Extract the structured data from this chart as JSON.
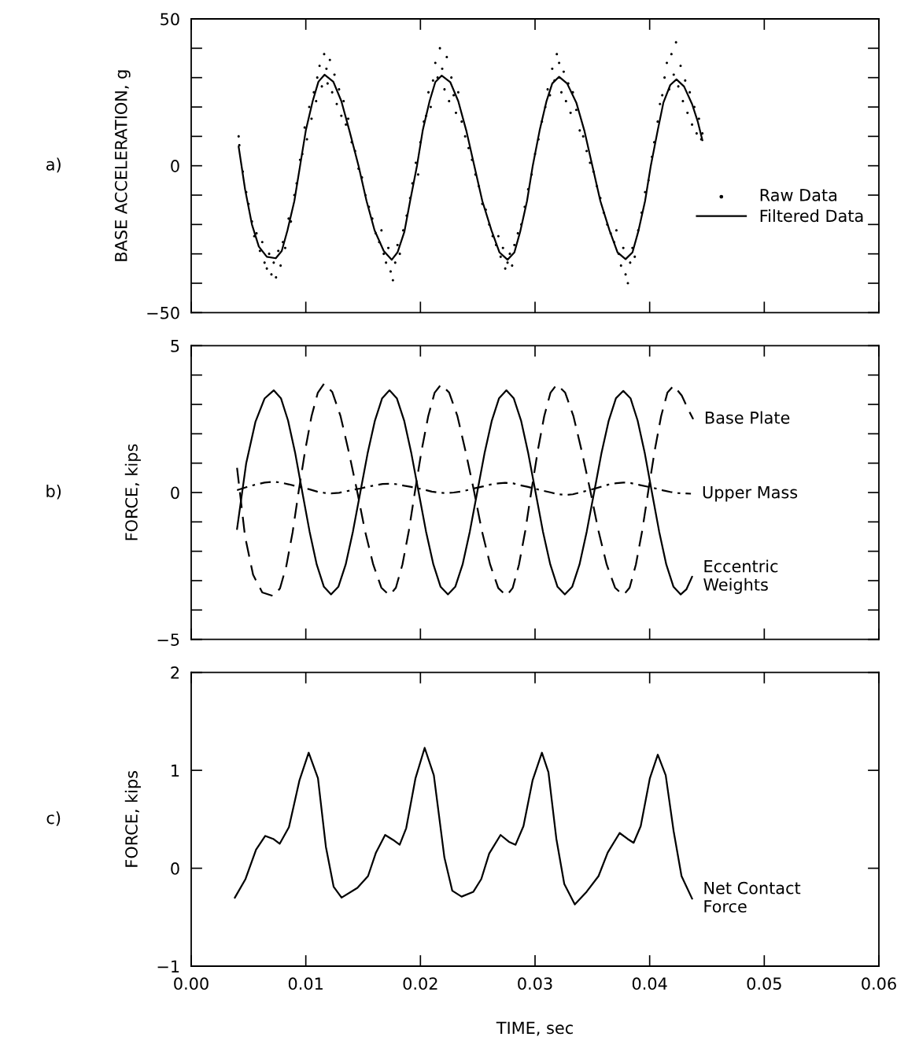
{
  "chart_data": [
    {
      "type": "line",
      "ylabel": "BASE ACCELERATION, g",
      "annotations": [
        "a)"
      ],
      "xlim": [
        0,
        0.06
      ],
      "ylim": [
        -50,
        50
      ],
      "tick_labels": "y",
      "legend": "right",
      "xticks": [
        {
          "value": 0,
          "label": null
        },
        {
          "value": 0.01,
          "label": null
        },
        {
          "value": 0.02,
          "label": null
        },
        {
          "value": 0.03,
          "label": null
        },
        {
          "value": 0.04,
          "label": null
        },
        {
          "value": 0.05,
          "label": null
        },
        {
          "value": 0.06,
          "label": null
        }
      ],
      "yticks": [
        -50,
        {
          "value": -40,
          "label": null
        },
        {
          "value": -30,
          "label": null
        },
        {
          "value": -20,
          "label": null
        },
        {
          "value": -10,
          "label": null
        },
        0,
        {
          "value": 10,
          "label": null
        },
        {
          "value": 20,
          "label": null
        },
        {
          "value": 30,
          "label": null
        },
        {
          "value": 40,
          "label": null
        },
        50
      ],
      "series": [
        {
          "name": "Raw Data",
          "type": "scatter",
          "marker": "circle",
          "color": "#000000",
          "x": [
            0.00414,
            0.0042,
            0.0045,
            0.0048,
            0.005,
            0.0053,
            0.0055,
            0.0057,
            0.006,
            0.0062,
            0.0064,
            0.0066,
            0.0068,
            0.007,
            0.0072,
            0.0074,
            0.0076,
            0.0078,
            0.008,
            0.0082,
            0.0085,
            0.0087,
            0.009,
            0.0092,
            0.0095,
            0.0097,
            0.0099,
            0.0101,
            0.0103,
            0.0105,
            0.0107,
            0.0109,
            0.011,
            0.0112,
            0.0114,
            0.0116,
            0.0118,
            0.0119,
            0.0121,
            0.0123,
            0.0125,
            0.0127,
            0.0129,
            0.0131,
            0.0133,
            0.0135,
            0.0137,
            0.014,
            0.0143,
            0.0146,
            0.0149,
            0.0152,
            0.0155,
            0.0158,
            0.0161,
            0.0164,
            0.0166,
            0.0168,
            0.017,
            0.0172,
            0.0174,
            0.0176,
            0.0178,
            0.018,
            0.0182,
            0.0185,
            0.0188,
            0.0191,
            0.0193,
            0.0196,
            0.0198,
            0.02,
            0.0203,
            0.0205,
            0.0207,
            0.0209,
            0.0211,
            0.0213,
            0.0215,
            0.0217,
            0.0219,
            0.0221,
            0.0223,
            0.0225,
            0.0227,
            0.0229,
            0.0231,
            0.0233,
            0.0236,
            0.0239,
            0.0242,
            0.0245,
            0.0248,
            0.0251,
            0.0254,
            0.0257,
            0.026,
            0.0263,
            0.0266,
            0.0268,
            0.027,
            0.0272,
            0.0274,
            0.0276,
            0.0278,
            0.028,
            0.0282,
            0.0285,
            0.0288,
            0.0291,
            0.0294,
            0.0297,
            0.03,
            0.0303,
            0.0306,
            0.0309,
            0.0311,
            0.0313,
            0.0315,
            0.0317,
            0.0319,
            0.0321,
            0.0323,
            0.0325,
            0.0327,
            0.0329,
            0.0331,
            0.0333,
            0.0336,
            0.0339,
            0.0342,
            0.0345,
            0.0348,
            0.0351,
            0.0354,
            0.0357,
            0.036,
            0.0363,
            0.0366,
            0.0369,
            0.0371,
            0.0373,
            0.0375,
            0.0377,
            0.0379,
            0.0381,
            0.0383,
            0.0385,
            0.0387,
            0.039,
            0.0393,
            0.0396,
            0.0399,
            0.0402,
            0.0404,
            0.0407,
            0.0409,
            0.0411,
            0.0413,
            0.0415,
            0.0417,
            0.0419,
            0.0421,
            0.0423,
            0.0425,
            0.0427,
            0.0429,
            0.0431,
            0.0433,
            0.0435,
            0.0437,
            0.0439,
            0.0441,
            0.0443,
            0.0445,
            0.0446
          ],
          "values": [
            10,
            7,
            -2,
            -9,
            -13,
            -19,
            -24,
            -23,
            -29,
            -26,
            -33,
            -35,
            -30,
            -37,
            -33,
            -38,
            -29,
            -34,
            -26,
            -28,
            -18,
            -19,
            -10,
            -6,
            2,
            4,
            13,
            9,
            20,
            16,
            25,
            22,
            30,
            34,
            27,
            38,
            33,
            28,
            36,
            25,
            31,
            21,
            26,
            17,
            22,
            14,
            16,
            8,
            5,
            -1,
            -4,
            -10,
            -14,
            -18,
            -23,
            -26,
            -22,
            -30,
            -33,
            -28,
            -36,
            -39,
            -33,
            -27,
            -30,
            -22,
            -17,
            -11,
            -6,
            1,
            -3,
            8,
            15,
            17,
            25,
            20,
            29,
            35,
            30,
            40,
            33,
            26,
            37,
            22,
            30,
            24,
            18,
            25,
            15,
            10,
            6,
            2,
            -3,
            -7,
            -13,
            -15,
            -20,
            -24,
            -27,
            -24,
            -31,
            -28,
            -35,
            -33,
            -30,
            -34,
            -27,
            -23,
            -20,
            -14,
            -8,
            -3,
            4,
            9,
            15,
            20,
            26,
            24,
            33,
            29,
            38,
            35,
            25,
            32,
            22,
            28,
            18,
            25,
            19,
            12,
            10,
            5,
            1,
            -2,
            -7,
            -11,
            -16,
            -20,
            -23,
            -26,
            -22,
            -30,
            -34,
            -28,
            -37,
            -40,
            -33,
            -28,
            -31,
            -22,
            -16,
            -9,
            -5,
            3,
            8,
            15,
            21,
            24,
            30,
            35,
            26,
            38,
            31,
            42,
            27,
            34,
            22,
            29,
            18,
            25,
            14,
            20,
            11,
            16,
            9,
            11
          ]
        },
        {
          "name": "Filtered Data",
          "type": "line",
          "marker": "none",
          "line_style": "solid",
          "color": "#000000",
          "x": [
            0.00414,
            0.0047,
            0.0053,
            0.0059,
            0.0066,
            0.00738,
            0.0079,
            0.0084,
            0.009,
            0.0095,
            0.01,
            0.0106,
            0.0111,
            0.01163,
            0.0124,
            0.0131,
            0.0138,
            0.0146,
            0.0153,
            0.016,
            0.0168,
            0.0175,
            0.018,
            0.0186,
            0.0191,
            0.0197,
            0.0202,
            0.0208,
            0.0213,
            0.02186,
            0.0226,
            0.0233,
            0.024,
            0.0247,
            0.0254,
            0.0262,
            0.0269,
            0.0276,
            0.0282,
            0.0287,
            0.0293,
            0.0298,
            0.0304,
            0.031,
            0.0315,
            0.0321,
            0.0328,
            0.0336,
            0.0343,
            0.035,
            0.0357,
            0.0365,
            0.0372,
            0.0379,
            0.0385,
            0.039,
            0.0396,
            0.0401,
            0.0407,
            0.0412,
            0.0418,
            0.04234,
            0.043,
            0.0437,
            0.0442,
            0.0446
          ],
          "values": [
            6.5,
            -8,
            -20,
            -27.5,
            -31,
            -31.5,
            -29,
            -22,
            -12,
            0,
            12,
            22,
            28.6,
            31,
            28.6,
            22,
            12,
            0,
            -12,
            -22,
            -29,
            -32,
            -29.5,
            -22.5,
            -12,
            0,
            12,
            22,
            28.5,
            30.7,
            28.5,
            22,
            12,
            0,
            -12,
            -22,
            -29.5,
            -32,
            -29.5,
            -22.5,
            -12,
            0,
            12,
            22,
            28,
            30.3,
            28,
            21.5,
            12,
            0,
            -12,
            -22,
            -29.5,
            -31.8,
            -29.5,
            -22.5,
            -12,
            0,
            12,
            21.5,
            27.5,
            29.4,
            27,
            21,
            15,
            8.7
          ]
        }
      ]
    },
    {
      "type": "line",
      "ylabel": "FORCE, kips",
      "annotations": [
        "b)"
      ],
      "xlim": [
        0,
        0.06
      ],
      "ylim": [
        -5,
        5
      ],
      "tick_labels": "y",
      "xticks": [
        {
          "value": 0,
          "label": null
        },
        {
          "value": 0.01,
          "label": null
        },
        {
          "value": 0.02,
          "label": null
        },
        {
          "value": 0.03,
          "label": null
        },
        {
          "value": 0.04,
          "label": null
        },
        {
          "value": 0.05,
          "label": null
        },
        {
          "value": 0.06,
          "label": null
        }
      ],
      "yticks": [
        -5,
        {
          "value": -4,
          "label": null
        },
        {
          "value": -3,
          "label": null
        },
        {
          "value": -2,
          "label": null
        },
        {
          "value": -1,
          "label": null
        },
        0,
        {
          "value": 1,
          "label": null
        },
        {
          "value": 2,
          "label": null
        },
        {
          "value": 3,
          "label": null
        },
        {
          "value": 4,
          "label": null
        },
        5
      ],
      "series": [
        {
          "name": "Base Plate",
          "type": "line",
          "line_style": "dashed",
          "color": "#000000",
          "x": [
            0.004,
            0.0047,
            0.0054,
            0.0062,
            0.0072,
            0.00775,
            0.0083,
            0.00885,
            0.0094,
            0.00995,
            0.0105,
            0.01105,
            0.0116,
            0.01231,
            0.01303,
            0.01374,
            0.01445,
            0.01516,
            0.01588,
            0.01659,
            0.0173,
            0.01786,
            0.01843,
            0.01899,
            0.01955,
            0.02011,
            0.02068,
            0.02124,
            0.0218,
            0.02251,
            0.02323,
            0.02394,
            0.02465,
            0.02536,
            0.02608,
            0.02679,
            0.0275,
            0.02805,
            0.0286,
            0.02915,
            0.0297,
            0.03025,
            0.0308,
            0.03135,
            0.0319,
            0.03263,
            0.03335,
            0.03408,
            0.0348,
            0.03553,
            0.03625,
            0.03698,
            0.0377,
            0.03825,
            0.0388,
            0.03935,
            0.0399,
            0.04045,
            0.041,
            0.04155,
            0.0421,
            0.0428,
            0.0434,
            0.0438
          ],
          "values": [
            0.84,
            -1.5,
            -2.8,
            -3.4,
            -3.53,
            -3.26,
            -2.5,
            -1.35,
            0.1,
            1.45,
            2.6,
            3.4,
            3.71,
            3.42,
            2.6,
            1.4,
            0.1,
            -1.3,
            -2.45,
            -3.24,
            -3.5,
            -3.24,
            -2.45,
            -1.3,
            0.1,
            1.45,
            2.6,
            3.4,
            3.68,
            3.4,
            2.6,
            1.4,
            0.1,
            -1.3,
            -2.45,
            -3.25,
            -3.52,
            -3.25,
            -2.45,
            -1.3,
            0.1,
            1.45,
            2.6,
            3.4,
            3.68,
            3.4,
            2.6,
            1.4,
            0.1,
            -1.3,
            -2.45,
            -3.24,
            -3.5,
            -3.24,
            -2.45,
            -1.3,
            0.1,
            1.45,
            2.6,
            3.4,
            3.64,
            3.3,
            2.8,
            2.5
          ]
        },
        {
          "name": "Upper Mass",
          "type": "line",
          "line_style": "dashdot",
          "color": "#000000",
          "x": [
            0.004,
            0.0048,
            0.0056,
            0.0064,
            0.0072,
            0.0078,
            0.0085,
            0.0091,
            0.0097,
            0.0103,
            0.011,
            0.0116,
            0.0122,
            0.0129,
            0.0135,
            0.0141,
            0.0148,
            0.0154,
            0.0161,
            0.0167,
            0.0174,
            0.018,
            0.0186,
            0.0192,
            0.0198,
            0.0204,
            0.021,
            0.0217,
            0.0223,
            0.0229,
            0.0236,
            0.0242,
            0.0248,
            0.0255,
            0.0261,
            0.0268,
            0.0274,
            0.0281,
            0.0287,
            0.0294,
            0.03,
            0.0307,
            0.0314,
            0.032,
            0.0327,
            0.0333,
            0.0339,
            0.0345,
            0.0352,
            0.0358,
            0.0364,
            0.0371,
            0.0377,
            0.0384,
            0.0391,
            0.0398,
            0.0405,
            0.0412,
            0.0418,
            0.0425,
            0.0436
          ],
          "values": [
            0.08,
            0.18,
            0.27,
            0.34,
            0.37,
            0.34,
            0.28,
            0.22,
            0.17,
            0.11,
            0.03,
            -0.01,
            -0.03,
            -0.01,
            0.04,
            0.09,
            0.14,
            0.2,
            0.25,
            0.29,
            0.3,
            0.28,
            0.23,
            0.19,
            0.14,
            0.09,
            0.03,
            -0.01,
            -0.02,
            0,
            0.04,
            0.09,
            0.15,
            0.21,
            0.27,
            0.31,
            0.33,
            0.31,
            0.25,
            0.19,
            0.13,
            0.06,
            0,
            -0.06,
            -0.08,
            -0.06,
            0,
            0.06,
            0.13,
            0.2,
            0.27,
            0.32,
            0.34,
            0.32,
            0.26,
            0.2,
            0.14,
            0.07,
            0.02,
            -0.02,
            -0.04
          ]
        },
        {
          "name": "Eccentric\nWeights",
          "type": "line",
          "line_style": "solid",
          "color": "#000000",
          "x": [
            0.004,
            0.0048,
            0.0056,
            0.0064,
            0.0072,
            0.00783,
            0.00845,
            0.00908,
            0.0097,
            0.01033,
            0.01095,
            0.01158,
            0.0122,
            0.01284,
            0.01348,
            0.01411,
            0.01475,
            0.01539,
            0.01603,
            0.01666,
            0.0173,
            0.01794,
            0.01858,
            0.01921,
            0.01985,
            0.02049,
            0.02113,
            0.02176,
            0.0224,
            0.02304,
            0.02368,
            0.02431,
            0.02495,
            0.02559,
            0.02623,
            0.02686,
            0.0275,
            0.02814,
            0.02878,
            0.02941,
            0.03005,
            0.03069,
            0.03133,
            0.03196,
            0.0326,
            0.03324,
            0.03388,
            0.03451,
            0.03515,
            0.03579,
            0.03643,
            0.03706,
            0.0377,
            0.03833,
            0.03895,
            0.03958,
            0.0402,
            0.04083,
            0.04145,
            0.04208,
            0.0427,
            0.0432,
            0.0437
          ],
          "values": [
            -1.24,
            1.0,
            2.4,
            3.2,
            3.48,
            3.21,
            2.45,
            1.33,
            0,
            -1.33,
            -2.45,
            -3.21,
            -3.47,
            -3.21,
            -2.45,
            -1.33,
            0,
            1.33,
            2.45,
            3.21,
            3.48,
            3.21,
            2.45,
            1.33,
            0,
            -1.33,
            -2.45,
            -3.21,
            -3.47,
            -3.21,
            -2.45,
            -1.33,
            0,
            1.33,
            2.45,
            3.21,
            3.48,
            3.21,
            2.45,
            1.33,
            0,
            -1.33,
            -2.45,
            -3.21,
            -3.47,
            -3.21,
            -2.45,
            -1.33,
            0,
            1.33,
            2.45,
            3.21,
            3.46,
            3.21,
            2.45,
            1.33,
            0,
            -1.33,
            -2.45,
            -3.21,
            -3.47,
            -3.3,
            -2.87
          ]
        }
      ]
    },
    {
      "type": "line",
      "ylabel": "FORCE, kips",
      "xlabel": "TIME, sec",
      "annotations": [
        "c)"
      ],
      "xlim": [
        0,
        0.06
      ],
      "ylim": [
        -1,
        2
      ],
      "xticks": [
        {
          "value": 0,
          "label": "0.00"
        },
        {
          "value": 0.01,
          "label": "0.01"
        },
        {
          "value": 0.02,
          "label": "0.02"
        },
        {
          "value": 0.03,
          "label": "0.03"
        },
        {
          "value": 0.04,
          "label": "0.04"
        },
        {
          "value": 0.05,
          "label": "0.05"
        },
        {
          "value": 0.06,
          "label": "0.06"
        }
      ],
      "yticks": [
        -1,
        0,
        1,
        2
      ],
      "series": [
        {
          "name": "Net Contact\nForce",
          "type": "line",
          "line_style": "solid",
          "color": "#000000",
          "x": [
            0.00381,
            0.00474,
            0.00566,
            0.00646,
            0.00715,
            0.00772,
            0.00853,
            0.00945,
            0.01025,
            0.01106,
            0.01175,
            0.01243,
            0.01312,
            0.0145,
            0.01543,
            0.01612,
            0.01692,
            0.01761,
            0.01819,
            0.01876,
            0.01957,
            0.02037,
            0.02117,
            0.02209,
            0.02278,
            0.02359,
            0.02462,
            0.02531,
            0.026,
            0.02699,
            0.02772,
            0.0283,
            0.02899,
            0.02979,
            0.0306,
            0.03117,
            0.03186,
            0.03255,
            0.03347,
            0.0345,
            0.03554,
            0.03634,
            0.03738,
            0.03807,
            0.0386,
            0.03922,
            0.04002,
            0.04071,
            0.0414,
            0.04209,
            0.04278,
            0.0437
          ],
          "values": [
            -0.3,
            -0.11,
            0.19,
            0.33,
            0.3,
            0.25,
            0.42,
            0.9,
            1.18,
            0.92,
            0.22,
            -0.19,
            -0.3,
            -0.2,
            -0.08,
            0.16,
            0.34,
            0.29,
            0.24,
            0.41,
            0.92,
            1.23,
            0.95,
            0.11,
            -0.23,
            -0.29,
            -0.24,
            -0.11,
            0.15,
            0.34,
            0.27,
            0.24,
            0.43,
            0.9,
            1.18,
            0.98,
            0.3,
            -0.16,
            -0.37,
            -0.24,
            -0.08,
            0.16,
            0.36,
            0.3,
            0.26,
            0.43,
            0.92,
            1.16,
            0.95,
            0.38,
            -0.08,
            -0.31
          ]
        }
      ]
    }
  ]
}
